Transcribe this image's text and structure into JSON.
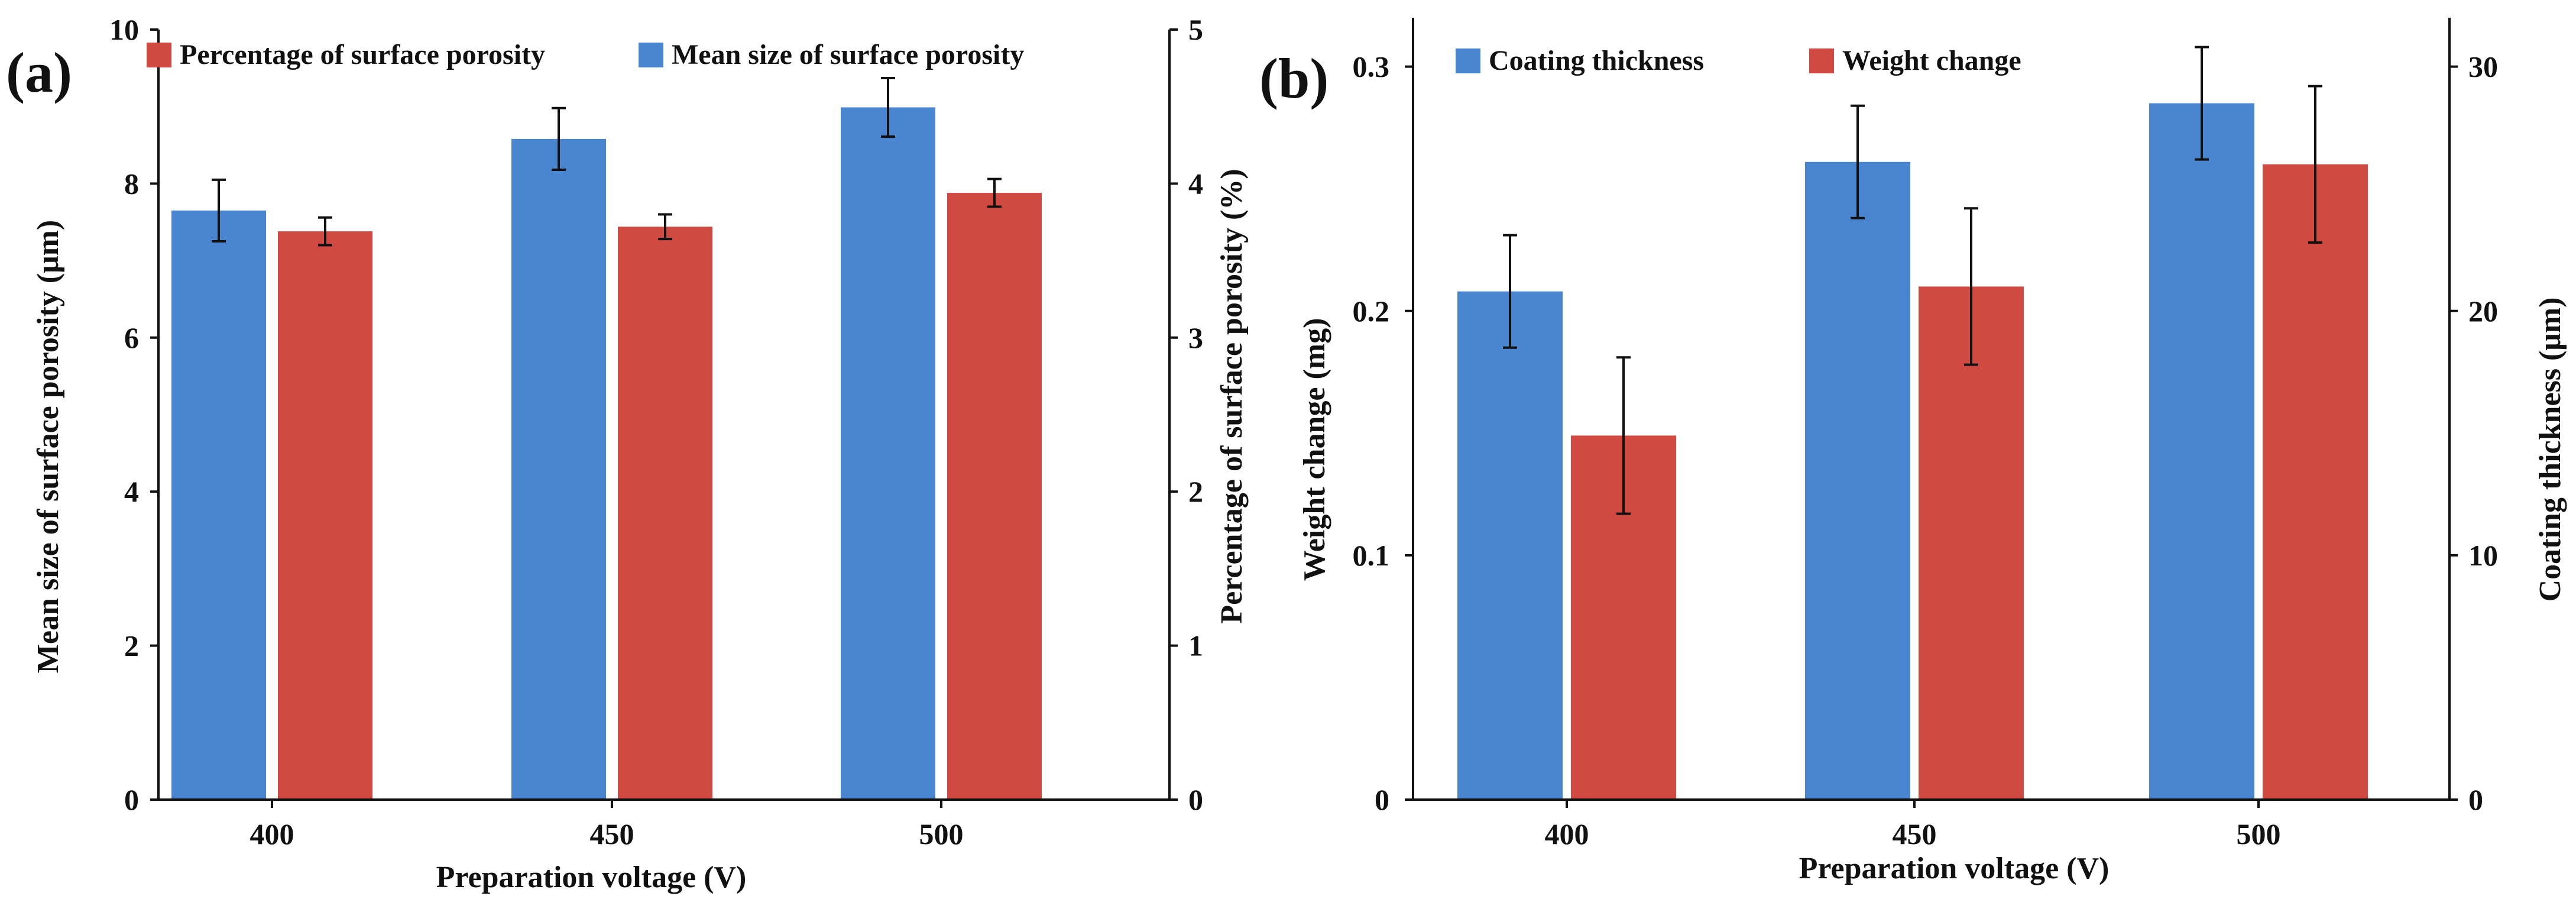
{
  "chart_data": [
    {
      "panel": "(a)",
      "type": "bar",
      "categories": [
        "400",
        "450",
        "500"
      ],
      "xlabel": "Preparation voltage (V)",
      "y_left": {
        "label": "Mean size of surface porosity (μm)",
        "lim": [
          0,
          10
        ],
        "ticks": [
          "0",
          "2",
          "4",
          "6",
          "8",
          "10"
        ]
      },
      "y_right": {
        "label": "Percentage of surface porosity (%)",
        "lim": [
          0,
          5
        ],
        "ticks": [
          "0",
          "1",
          "2",
          "3",
          "4",
          "5"
        ]
      },
      "series": [
        {
          "name": "Mean size of surface porosity",
          "axis": "left",
          "color": "#4a86d0",
          "values": [
            7.65,
            8.58,
            8.99
          ],
          "errors": [
            0.4,
            0.4,
            0.38
          ]
        },
        {
          "name": "Percentage of surface porosity",
          "axis": "right",
          "color": "#d04a42",
          "values": [
            3.69,
            3.72,
            3.94
          ],
          "errors": [
            0.09,
            0.08,
            0.09
          ]
        }
      ],
      "legend": [
        {
          "label": "Percentage of surface porosity",
          "color": "#d04a42"
        },
        {
          "label": "Mean size of surface porosity",
          "color": "#4a86d0"
        }
      ],
      "legend_position": "top"
    },
    {
      "panel": "(b)",
      "type": "bar",
      "categories": [
        "400",
        "450",
        "500"
      ],
      "xlabel": "Preparation voltage (V)",
      "y_left": {
        "label": "Weight change (mg)",
        "lim": [
          0,
          0.32
        ],
        "ticks": [
          "0",
          "0.1",
          "0.2",
          "0.3"
        ]
      },
      "y_right": {
        "label": "Coating thickness (μm)",
        "lim": [
          0,
          32
        ],
        "ticks": [
          "0",
          "10",
          "20",
          "30"
        ]
      },
      "series": [
        {
          "name": "Coating thickness",
          "axis": "right",
          "color": "#4a86d0",
          "values": [
            20.8,
            26.1,
            28.5
          ],
          "errors": [
            2.3,
            2.3,
            2.3
          ]
        },
        {
          "name": "Weight change",
          "axis": "left",
          "color": "#d04a42",
          "values": [
            0.149,
            0.21,
            0.26
          ],
          "errors": [
            0.032,
            0.032,
            0.032
          ]
        }
      ],
      "legend": [
        {
          "label": "Coating thickness",
          "color": "#4a86d0"
        },
        {
          "label": "Weight change",
          "color": "#d04a42"
        }
      ],
      "legend_position": "top"
    }
  ]
}
